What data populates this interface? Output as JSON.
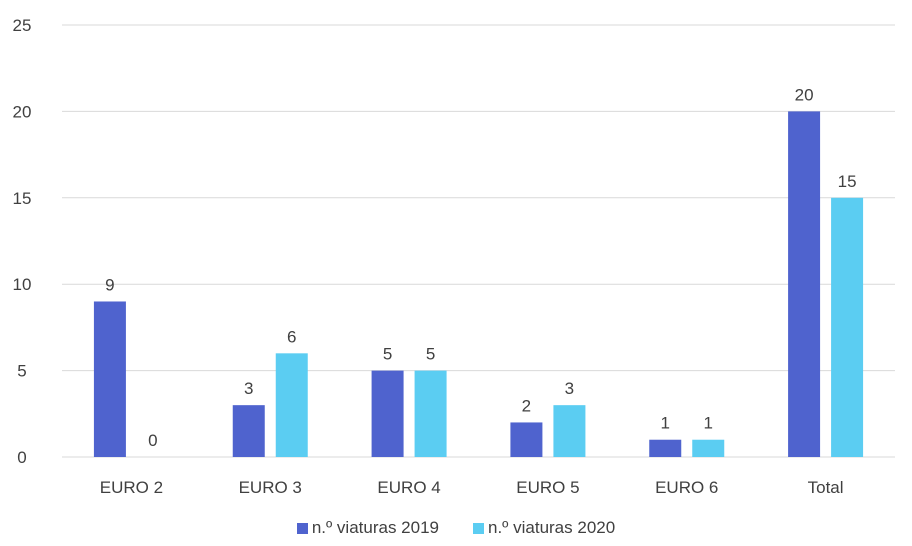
{
  "chart_data": {
    "type": "bar",
    "categories": [
      "EURO 2",
      "EURO 3",
      "EURO 4",
      "EURO 5",
      "EURO 6",
      "Total"
    ],
    "series": [
      {
        "name": "n.º viaturas 2019",
        "values": [
          9,
          3,
          5,
          2,
          1,
          20
        ],
        "color": "#4F63CE"
      },
      {
        "name": "n.º viaturas 2020",
        "values": [
          0,
          6,
          5,
          3,
          1,
          15
        ],
        "color": "#5BCDF2"
      }
    ],
    "yticks": [
      "0",
      "5",
      "10",
      "15",
      "20",
      "25"
    ],
    "ylim": [
      0,
      25
    ],
    "grid": true,
    "legend_position": "bottom",
    "data_labels": true
  }
}
